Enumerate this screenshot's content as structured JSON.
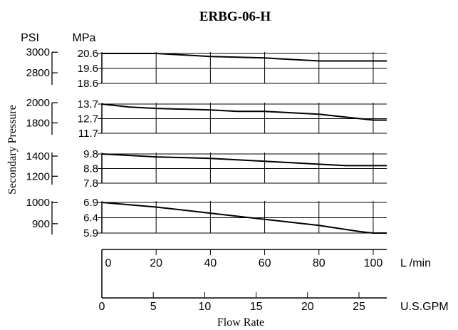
{
  "chart_data": {
    "type": "line",
    "title": "ERBG-06-H",
    "ylabel": "Secondary Pressure",
    "xlabel": "Flow Rate",
    "y_unit_left": "PSI",
    "y_unit_right": "MPa",
    "x_axes": [
      {
        "unit": "L /min",
        "range": [
          0,
          105
        ],
        "ticks": [
          "0",
          "20",
          "40",
          "60",
          "80",
          "100"
        ],
        "tick_values": [
          0,
          20,
          40,
          60,
          80,
          100
        ]
      },
      {
        "unit": "U.S.GPM",
        "range": [
          0,
          27.7
        ],
        "ticks": [
          "0",
          "5",
          "10",
          "15",
          "20",
          "25"
        ],
        "tick_values": [
          0,
          5,
          10,
          15,
          20,
          25
        ]
      }
    ],
    "panels": [
      {
        "psi_ticks": [
          "3000",
          "2800"
        ],
        "psi_values": [
          3000,
          2800
        ],
        "mpa_ticks": [
          "20.6",
          "19.6",
          "18.6"
        ],
        "mpa_values": [
          20.6,
          19.6,
          18.6
        ],
        "ylim": [
          18.6,
          20.6
        ],
        "series": {
          "x": [
            0,
            20,
            40,
            60,
            80,
            90,
            100,
            105
          ],
          "y": [
            20.6,
            20.6,
            20.4,
            20.3,
            20.1,
            20.1,
            20.1,
            20.1
          ]
        }
      },
      {
        "psi_ticks": [
          "2000",
          "1800"
        ],
        "psi_values": [
          2000,
          1800
        ],
        "mpa_ticks": [
          "13.7",
          "12.7",
          "11.7"
        ],
        "mpa_values": [
          13.7,
          12.7,
          11.7
        ],
        "ylim": [
          11.7,
          13.7
        ],
        "series": {
          "x": [
            0,
            10,
            20,
            40,
            50,
            60,
            80,
            90,
            100,
            105
          ],
          "y": [
            13.7,
            13.5,
            13.4,
            13.3,
            13.2,
            13.2,
            13.0,
            12.8,
            12.6,
            12.6
          ]
        }
      },
      {
        "psi_ticks": [
          "1400",
          "1200"
        ],
        "psi_values": [
          1400,
          1200
        ],
        "mpa_ticks": [
          "9.8",
          "8.8",
          "7.8"
        ],
        "mpa_values": [
          9.8,
          8.8,
          7.8
        ],
        "ylim": [
          7.8,
          9.8
        ],
        "series": {
          "x": [
            0,
            20,
            40,
            60,
            80,
            90,
            100,
            105
          ],
          "y": [
            9.8,
            9.6,
            9.5,
            9.3,
            9.1,
            9.0,
            9.0,
            9.0
          ]
        }
      },
      {
        "psi_ticks": [
          "1000",
          "900"
        ],
        "psi_values": [
          1000,
          900
        ],
        "mpa_ticks": [
          "6.9",
          "6.4",
          "5.9"
        ],
        "mpa_values": [
          6.9,
          6.4,
          5.9
        ],
        "ylim": [
          5.9,
          6.9
        ],
        "series": {
          "x": [
            0,
            20,
            40,
            60,
            80,
            95,
            100,
            105
          ],
          "y": [
            6.9,
            6.75,
            6.55,
            6.35,
            6.15,
            5.95,
            5.9,
            5.9
          ]
        }
      }
    ]
  }
}
